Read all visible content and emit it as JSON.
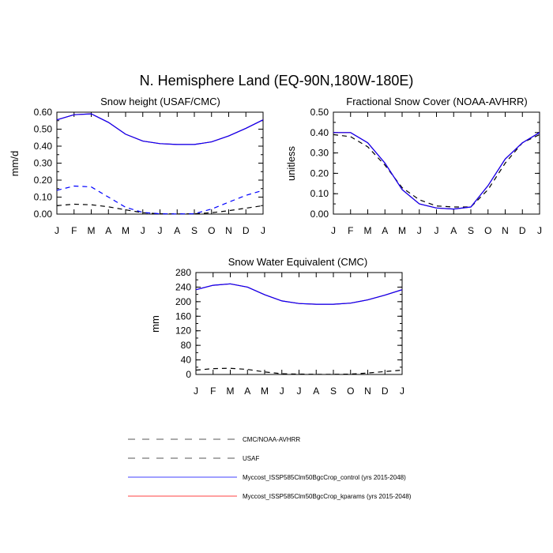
{
  "figure": {
    "title": "N. Hemisphere Land (EQ-90N,180W-180E)"
  },
  "legend": {
    "entries": [
      {
        "label": "CMC/NOAA-AVHRR",
        "color": "#000000",
        "dash": "dashed"
      },
      {
        "label": "USAF",
        "color": "#0000ff",
        "dash": "dashed"
      },
      {
        "label": "Myccost_ISSP585Clm50BgcCrop_control (yrs 2015-2048)",
        "color": "#0000ff",
        "dash": "solid"
      },
      {
        "label": "Myccost_ISSP585Clm50BgcCrop_kparams (yrs 2015-2048)",
        "color": "#ff0000",
        "dash": "solid"
      }
    ]
  },
  "chart_data": [
    {
      "type": "line",
      "title": "Snow height (USAF/CMC)",
      "xlabel": "",
      "ylabel": "mm/d",
      "categories": [
        "J",
        "F",
        "M",
        "A",
        "M",
        "J",
        "J",
        "A",
        "S",
        "O",
        "N",
        "D",
        "J"
      ],
      "ylim": [
        0,
        0.6
      ],
      "yticks": [
        0,
        0.1,
        0.2,
        0.3,
        0.4,
        0.5,
        0.6
      ],
      "ytick_labels": [
        "0.00",
        "0.10",
        "0.20",
        "0.30",
        "0.40",
        "0.50",
        "0.60"
      ],
      "series": [
        {
          "name": "CMC/NOAA-AVHRR",
          "color": "#000000",
          "dash": "dashed",
          "values": [
            0.05,
            0.058,
            0.055,
            0.043,
            0.025,
            0.008,
            0.002,
            0.001,
            0.002,
            0.008,
            0.02,
            0.035,
            0.05
          ]
        },
        {
          "name": "USAF",
          "color": "#0000ff",
          "dash": "dashed",
          "values": [
            0.14,
            0.165,
            0.16,
            0.1,
            0.04,
            0.01,
            0.002,
            0.001,
            0.002,
            0.03,
            0.07,
            0.11,
            0.14
          ]
        },
        {
          "name": "Myccost_ISSP585Clm50BgcCrop_kparams (yrs 2015-2048)",
          "color": "#ff0000",
          "dash": "solid",
          "values": [
            0.555,
            0.585,
            0.59,
            0.54,
            0.47,
            0.43,
            0.415,
            0.41,
            0.41,
            0.425,
            0.46,
            0.505,
            0.555
          ]
        },
        {
          "name": "Myccost_ISSP585Clm50BgcCrop_control (yrs 2015-2048)",
          "color": "#0000ff",
          "dash": "solid",
          "values": [
            0.555,
            0.585,
            0.59,
            0.54,
            0.47,
            0.43,
            0.415,
            0.41,
            0.41,
            0.425,
            0.46,
            0.505,
            0.555
          ]
        }
      ]
    },
    {
      "type": "line",
      "title": "Fractional Snow Cover (NOAA-AVHRR)",
      "xlabel": "",
      "ylabel": "unitless",
      "categories": [
        "J",
        "F",
        "M",
        "A",
        "M",
        "J",
        "J",
        "A",
        "S",
        "O",
        "N",
        "D",
        "J"
      ],
      "ylim": [
        0,
        0.5
      ],
      "yticks": [
        0,
        0.1,
        0.2,
        0.3,
        0.4,
        0.5
      ],
      "ytick_labels": [
        "0.00",
        "0.10",
        "0.20",
        "0.30",
        "0.40",
        "0.50"
      ],
      "series": [
        {
          "name": "CMC/NOAA-AVHRR",
          "color": "#000000",
          "dash": "dashed",
          "values": [
            0.39,
            0.38,
            0.33,
            0.24,
            0.13,
            0.07,
            0.04,
            0.035,
            0.035,
            0.12,
            0.25,
            0.35,
            0.39
          ]
        },
        {
          "name": "Myccost_ISSP585Clm50BgcCrop_kparams (yrs 2015-2048)",
          "color": "#ff0000",
          "dash": "solid",
          "values": [
            0.4,
            0.4,
            0.35,
            0.25,
            0.12,
            0.05,
            0.03,
            0.025,
            0.035,
            0.14,
            0.27,
            0.35,
            0.4
          ]
        },
        {
          "name": "Myccost_ISSP585Clm50BgcCrop_control (yrs 2015-2048)",
          "color": "#0000ff",
          "dash": "solid",
          "values": [
            0.4,
            0.4,
            0.35,
            0.25,
            0.12,
            0.05,
            0.03,
            0.025,
            0.035,
            0.14,
            0.27,
            0.35,
            0.4
          ]
        }
      ]
    },
    {
      "type": "line",
      "title": "Snow Water Equivalent (CMC)",
      "xlabel": "",
      "ylabel": "mm",
      "categories": [
        "J",
        "F",
        "M",
        "A",
        "M",
        "J",
        "J",
        "A",
        "S",
        "O",
        "N",
        "D",
        "J"
      ],
      "ylim": [
        0,
        280
      ],
      "yticks": [
        0,
        40,
        80,
        120,
        160,
        200,
        240,
        280
      ],
      "ytick_labels": [
        "0",
        "40",
        "80",
        "120",
        "160",
        "200",
        "240",
        "280"
      ],
      "series": [
        {
          "name": "CMC/NOAA-AVHRR",
          "color": "#000000",
          "dash": "dashed",
          "values": [
            12,
            16,
            17,
            14,
            7,
            2,
            1,
            0.5,
            0.5,
            1,
            4,
            8,
            12
          ]
        },
        {
          "name": "Myccost_ISSP585Clm50BgcCrop_kparams (yrs 2015-2048)",
          "color": "#ff0000",
          "dash": "solid",
          "values": [
            233,
            245,
            249,
            240,
            219,
            202,
            195,
            193,
            193,
            196,
            205,
            218,
            233
          ]
        },
        {
          "name": "Myccost_ISSP585Clm50BgcCrop_control (yrs 2015-2048)",
          "color": "#0000ff",
          "dash": "solid",
          "values": [
            233,
            245,
            249,
            240,
            219,
            202,
            195,
            193,
            193,
            196,
            205,
            218,
            233
          ]
        }
      ]
    }
  ]
}
